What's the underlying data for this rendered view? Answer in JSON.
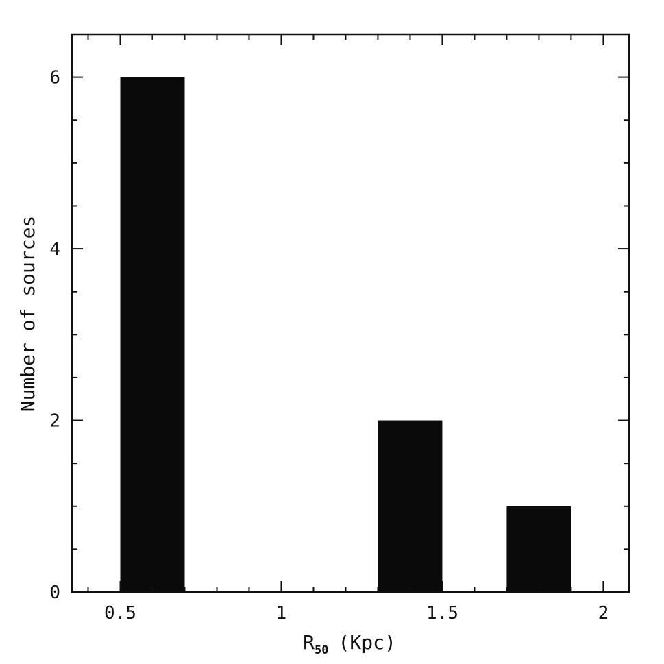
{
  "chart_data": {
    "type": "bar",
    "title": "",
    "xlabel_main": "R",
    "xlabel_subscript": "50",
    "xlabel_unit": "(Kpc)",
    "ylabel": "Number of sources",
    "xlim": [
      0.35,
      2.08
    ],
    "ylim": [
      0,
      6.5
    ],
    "x_major_ticks": [
      0.5,
      1,
      1.5,
      2
    ],
    "x_major_tick_labels": [
      "0.5",
      "1",
      "1.5",
      "2"
    ],
    "x_minor_step": 0.1,
    "y_major_ticks": [
      0,
      2,
      4,
      6
    ],
    "y_major_tick_labels": [
      "0",
      "2",
      "4",
      "6"
    ],
    "y_minor_step": 0.5,
    "bars": [
      {
        "x_start": 0.5,
        "x_end": 0.7,
        "value": 6
      },
      {
        "x_start": 1.3,
        "x_end": 1.5,
        "value": 2
      },
      {
        "x_start": 1.7,
        "x_end": 1.9,
        "value": 1
      }
    ],
    "bar_color": "#0a0a0a",
    "grid": false,
    "legend": "none"
  }
}
